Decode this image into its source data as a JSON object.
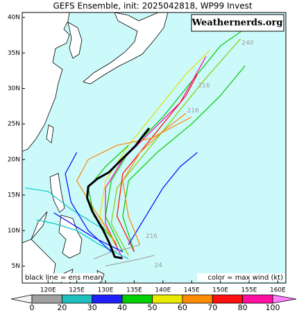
{
  "title": "GEFS Ensemble, init: 2025042818, WP99 Invest",
  "watermark": "Weathernerds.org",
  "note_left": "black line = ens mean",
  "note_right": "color = max wind (kt)",
  "map": {
    "xlim": [
      115.5,
      161.4
    ],
    "ylim": [
      2.6,
      40.7
    ],
    "xticks": [
      {
        "value": 120,
        "label": "120E"
      },
      {
        "value": 125,
        "label": "125E"
      },
      {
        "value": 130,
        "label": "130E"
      },
      {
        "value": 135,
        "label": "135E"
      },
      {
        "value": 140,
        "label": "140E"
      },
      {
        "value": 145,
        "label": "145E"
      },
      {
        "value": 150,
        "label": "150E"
      },
      {
        "value": 155,
        "label": "155E"
      },
      {
        "value": 160,
        "label": "160E"
      }
    ],
    "yticks": [
      {
        "value": 5,
        "label": "5N"
      },
      {
        "value": 10,
        "label": "10N"
      },
      {
        "value": 15,
        "label": "15N"
      },
      {
        "value": 20,
        "label": "20N"
      },
      {
        "value": 25,
        "label": "25N"
      },
      {
        "value": 30,
        "label": "30N"
      },
      {
        "value": 35,
        "label": "35N"
      },
      {
        "value": 40,
        "label": "40N"
      }
    ],
    "tracks": [
      {
        "color": "#00c800",
        "lon": [
          133,
          130,
          131,
          134,
          140,
          146,
          150,
          154.1
        ],
        "lat": [
          7,
          12,
          17,
          21,
          26,
          32,
          36,
          38.3
        ]
      },
      {
        "color": "#7ad000",
        "lon": [
          134,
          131,
          132,
          136,
          142,
          147,
          153.5
        ],
        "lat": [
          6.5,
          11,
          16,
          20,
          26,
          31,
          37
        ]
      },
      {
        "color": "#e0e000",
        "lon": [
          132,
          129,
          130,
          134,
          139,
          144,
          148.2
        ],
        "lat": [
          7.5,
          12,
          17,
          22,
          27,
          32,
          35.4
        ]
      },
      {
        "color": "#00c800",
        "lon": [
          135,
          133,
          134,
          139,
          145,
          150,
          154.3
        ],
        "lat": [
          7,
          12,
          17,
          21,
          25,
          29,
          33.2
        ]
      },
      {
        "color": "#ff00aa",
        "lon": [
          133,
          130,
          130,
          133,
          138,
          143,
          147.5
        ],
        "lat": [
          6,
          11,
          16,
          20,
          24,
          28,
          34.5
        ]
      },
      {
        "color": "#ff0000",
        "lon": [
          135,
          132,
          133,
          137,
          141,
          144,
          146
        ],
        "lat": [
          7,
          12,
          18,
          22,
          26,
          29,
          32
        ]
      },
      {
        "color": "#ff8000",
        "lon": [
          132,
          128,
          125,
          127,
          132,
          138,
          145
        ],
        "lat": [
          8,
          13,
          17,
          20,
          22,
          23,
          26
        ]
      },
      {
        "color": "#0000ff",
        "lon": [
          133,
          128,
          124,
          121
        ],
        "lat": [
          7,
          9,
          11,
          12.5
        ]
      },
      {
        "color": "#00c8c8",
        "lon": [
          134,
          129,
          125,
          121,
          118
        ],
        "lat": [
          6,
          8,
          10,
          11,
          11.5
        ]
      },
      {
        "color": "#0000ff",
        "lon": [
          134,
          137,
          140,
          143,
          146
        ],
        "lat": [
          8,
          12,
          16,
          19,
          21
        ]
      },
      {
        "color": "#a0a0a0",
        "lon": [
          130,
          133,
          136,
          138.5
        ],
        "lat": [
          5,
          5.5,
          6,
          6.5
        ]
      },
      {
        "color": "#00c8c8",
        "lon": [
          130,
          124,
          120,
          116
        ],
        "lat": [
          10,
          13,
          15.5,
          16
        ]
      },
      {
        "color": "#ff8000",
        "lon": [
          136,
          134,
          133,
          136,
          140,
          144
        ],
        "lat": [
          8,
          12,
          17,
          21,
          24,
          26.5
        ]
      },
      {
        "color": "#00c800",
        "lon": [
          131,
          128,
          127,
          130,
          134
        ],
        "lat": [
          9,
          12,
          16,
          19,
          22
        ]
      },
      {
        "color": "#a0a0a0",
        "lon": [
          128,
          131,
          134,
          136
        ],
        "lat": [
          6,
          7,
          7.5,
          8
        ]
      },
      {
        "color": "#0000ff",
        "lon": [
          131,
          127,
          124,
          123,
          125
        ],
        "lat": [
          7,
          10,
          14,
          18,
          21
        ]
      }
    ],
    "mean_track": {
      "color": "#000000",
      "lon": [
        132.9,
        131.6,
        130.7,
        129.5,
        127.7,
        126.8,
        127.0,
        128.6,
        130.6,
        132.8,
        135.2,
        136.6,
        137.6
      ],
      "lat": [
        6.1,
        6.3,
        8.2,
        10.2,
        12.7,
        14.6,
        16.2,
        17.3,
        18.2,
        20.0,
        21.9,
        23.4,
        24.4
      ]
    },
    "hour_labels": [
      {
        "text": "216",
        "lon": 144.2,
        "lat": 26.9
      },
      {
        "text": "240",
        "lon": 153.7,
        "lat": 36.4
      },
      {
        "text": "216",
        "lon": 146.1,
        "lat": 30.4
      },
      {
        "text": "24",
        "lon": 138.5,
        "lat": 5.1
      },
      {
        "text": "216",
        "lon": 137,
        "lat": 9.2
      }
    ]
  },
  "colorbar": {
    "bounds": [
      0,
      20,
      30,
      40,
      50,
      60,
      70,
      80,
      100
    ],
    "colors": [
      "#a0a0a0",
      "#20c0c0",
      "#2020ff",
      "#00d000",
      "#e8e800",
      "#ff8c00",
      "#ff1010",
      "#ff10a0"
    ]
  }
}
